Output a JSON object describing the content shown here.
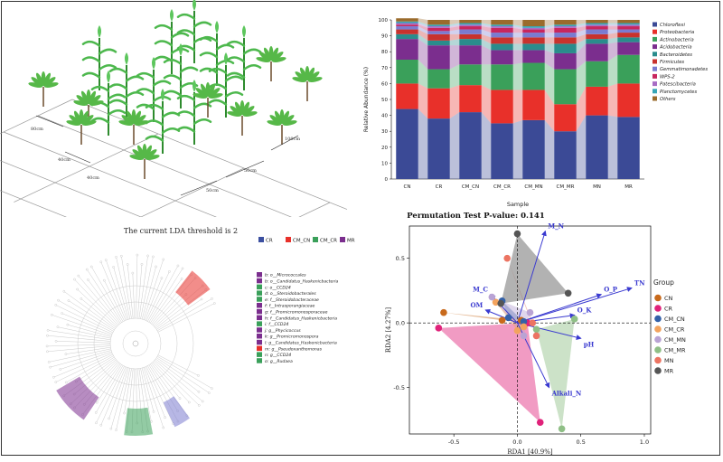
{
  "figure": {
    "field_labels": {
      "r1": "80cm",
      "r2": "40cm",
      "r3": "40cm",
      "d1": "100cm",
      "d2": "50cm",
      "d3": "50cm"
    },
    "lda_title": "The current LDA threshold is 2",
    "lefse_groups": [
      "CR",
      "CM_CN",
      "CM_CR",
      "MR"
    ],
    "lefse_group_colors": [
      "#3b4fa0",
      "#e8302a",
      "#3aa05a",
      "#7b2e8e"
    ],
    "lefse_taxa": [
      {
        "label": "b: o__Micrococcales",
        "color": "#7b2e8e"
      },
      {
        "label": "b: o__Candidatus_Haskenicbacteria",
        "color": "#7b2e8e"
      },
      {
        "label": "c: o__CCD24",
        "color": "#3aa05a"
      },
      {
        "label": "d: o__Steroidobacterales",
        "color": "#3aa05a"
      },
      {
        "label": "e: f__Steroidobacteraceae",
        "color": "#3aa05a"
      },
      {
        "label": "f: f__Intrasporangiaceae",
        "color": "#7b2e8e"
      },
      {
        "label": "g: f__Promicromonosporaceae",
        "color": "#7b2e8e"
      },
      {
        "label": "h: f__Candidatus_Haskenicbacteria",
        "color": "#7b2e8e"
      },
      {
        "label": "i: f__CCD24",
        "color": "#3aa05a"
      },
      {
        "label": "j: g__Phycicoccus",
        "color": "#7b2e8e"
      },
      {
        "label": "k: g__Promicromonospora",
        "color": "#7b2e8e"
      },
      {
        "label": "l: g__Candidatus_Haskenicbacteria",
        "color": "#7b2e8e"
      },
      {
        "label": "m: g__Pseudoxanthomonas",
        "color": "#e8302a"
      },
      {
        "label": "n: g__CCD24",
        "color": "#3aa05a"
      },
      {
        "label": "o: g__Rudaea",
        "color": "#3aa05a"
      }
    ]
  },
  "chart_data": [
    {
      "type": "bar",
      "stacked": true,
      "xlabel": "Sample",
      "ylabel": "Relative Abundance (%)",
      "ylim": [
        0,
        100
      ],
      "yticks": [
        0,
        10,
        20,
        30,
        40,
        50,
        60,
        70,
        80,
        90,
        100
      ],
      "categories": [
        "CN",
        "CR",
        "CM_CN",
        "CM_CR",
        "CM_MN",
        "CM_MR",
        "MN",
        "MR"
      ],
      "legend_position": "right",
      "series": [
        {
          "name": "Chloroflexi",
          "color": "#3b4a96",
          "values": [
            44,
            38,
            42,
            35,
            37,
            30,
            40,
            39
          ]
        },
        {
          "name": "Proteobacteria",
          "color": "#e8302a",
          "values": [
            16,
            19,
            17,
            21,
            19,
            17,
            18,
            21
          ]
        },
        {
          "name": "Actinobacteria",
          "color": "#3aa05a",
          "values": [
            15,
            12,
            13,
            16,
            17,
            22,
            16,
            18
          ]
        },
        {
          "name": "Acidobacteria",
          "color": "#7b2e8e",
          "values": [
            13,
            15,
            12,
            9,
            8,
            10,
            11,
            8
          ]
        },
        {
          "name": "Bacteroidetes",
          "color": "#2a8c8c",
          "values": [
            3,
            3,
            4,
            4,
            4,
            6,
            3,
            3
          ]
        },
        {
          "name": "Firmicutes",
          "color": "#c8322d",
          "values": [
            3,
            4,
            3,
            4,
            4,
            4,
            3,
            3
          ]
        },
        {
          "name": "Gemmatimonadetes",
          "color": "#7a7bd0",
          "values": [
            2,
            2,
            3,
            3,
            3,
            3,
            3,
            2
          ]
        },
        {
          "name": "WPS-2",
          "color": "#c8265e",
          "values": [
            1,
            2,
            2,
            3,
            2,
            3,
            2,
            2
          ]
        },
        {
          "name": "Patescibacteria",
          "color": "#a76cc4",
          "values": [
            1,
            1,
            1,
            1,
            1,
            1,
            1,
            1
          ]
        },
        {
          "name": "Planctomycetes",
          "color": "#36a6b7",
          "values": [
            1,
            1,
            1,
            1,
            1,
            1,
            1,
            1
          ]
        },
        {
          "name": "Others",
          "color": "#9a6b2c",
          "values": [
            2,
            3,
            2,
            3,
            4,
            3,
            2,
            2
          ]
        }
      ]
    },
    {
      "type": "scatter",
      "title": "Permutation Test P-value: 0.141",
      "xlabel": "RDA1 [40.9%]",
      "ylabel": "RDA2 [4.27%]",
      "xlim": [
        -0.85,
        1.05
      ],
      "ylim": [
        -0.86,
        0.75
      ],
      "xticks": [
        -0.5,
        0.0,
        0.5,
        1.0
      ],
      "yticks": [
        -0.5,
        0.0,
        0.5
      ],
      "legend_title": "Group",
      "legend_position": "right",
      "groups": [
        {
          "name": "CN",
          "color": "#c86a1c",
          "points": [
            [
              -0.58,
              0.08
            ],
            [
              -0.12,
              0.02
            ],
            [
              0.03,
              0.02
            ]
          ]
        },
        {
          "name": "CR",
          "color": "#e0227a",
          "points": [
            [
              -0.62,
              -0.04
            ],
            [
              0.18,
              -0.77
            ],
            [
              0.08,
              0.0
            ]
          ]
        },
        {
          "name": "CM_CN",
          "color": "#3461a8",
          "points": [
            [
              -0.12,
              0.17
            ],
            [
              -0.07,
              0.04
            ],
            [
              0.05,
              0.01
            ]
          ]
        },
        {
          "name": "CM_CR",
          "color": "#f3a35e",
          "points": [
            [
              -0.17,
              0.16
            ],
            [
              0.0,
              -0.06
            ],
            [
              0.05,
              -0.03
            ]
          ]
        },
        {
          "name": "CM_MN",
          "color": "#b9a3d4",
          "points": [
            [
              -0.2,
              0.2
            ],
            [
              0.05,
              -0.1
            ],
            [
              0.1,
              0.08
            ]
          ]
        },
        {
          "name": "CM_MR",
          "color": "#8fbf86",
          "points": [
            [
              0.35,
              -0.82
            ],
            [
              0.45,
              0.03
            ],
            [
              0.15,
              -0.05
            ]
          ]
        },
        {
          "name": "MN",
          "color": "#ec7462",
          "points": [
            [
              -0.08,
              0.5
            ],
            [
              0.12,
              0.0
            ],
            [
              0.15,
              -0.1
            ]
          ]
        },
        {
          "name": "MR",
          "color": "#555555",
          "points": [
            [
              0.0,
              0.69
            ],
            [
              0.4,
              0.23
            ],
            [
              -0.13,
              0.15
            ]
          ]
        }
      ],
      "vectors": [
        {
          "name": "M_N",
          "x": 0.22,
          "y": 0.71
        },
        {
          "name": "O_P",
          "x": 0.66,
          "y": 0.22
        },
        {
          "name": "TN",
          "x": 0.9,
          "y": 0.27
        },
        {
          "name": "M_C",
          "x": -0.21,
          "y": 0.22
        },
        {
          "name": "OM",
          "x": -0.25,
          "y": 0.1
        },
        {
          "name": "O_K",
          "x": 0.45,
          "y": 0.06
        },
        {
          "name": "pH",
          "x": 0.5,
          "y": -0.12
        },
        {
          "name": "Alkali_N",
          "x": 0.25,
          "y": -0.5
        }
      ]
    }
  ]
}
